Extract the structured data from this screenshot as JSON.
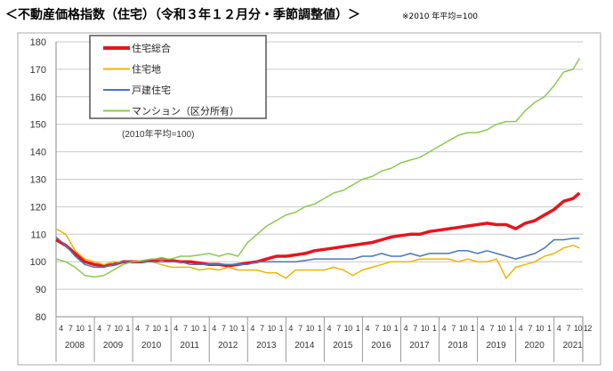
{
  "title": "＜不動産価格指数（住宅）（令和３年１２月分・季節調整値）＞",
  "note": "※2010 年平均=100",
  "chart_data": {
    "type": "line",
    "subtitle": "(2010年平均=100)",
    "ylim": [
      80,
      180
    ],
    "yticks": [
      80,
      90,
      100,
      110,
      120,
      130,
      140,
      150,
      160,
      170,
      180
    ],
    "grid": true,
    "legend_position": "top-left",
    "month_tick_labels": [
      "4",
      "7",
      "10",
      "1"
    ],
    "final_month_label": "12",
    "year_labels": [
      "2008",
      "2009",
      "2010",
      "2011",
      "2012",
      "2013",
      "2014",
      "2015",
      "2016",
      "2017",
      "2018",
      "2019",
      "2020",
      "2021"
    ],
    "x": [
      "2008-04",
      "2008-07",
      "2008-10",
      "2009-01",
      "2009-04",
      "2009-07",
      "2009-10",
      "2010-01",
      "2010-04",
      "2010-07",
      "2010-10",
      "2011-01",
      "2011-04",
      "2011-07",
      "2011-10",
      "2012-01",
      "2012-04",
      "2012-07",
      "2012-10",
      "2013-01",
      "2013-04",
      "2013-07",
      "2013-10",
      "2014-01",
      "2014-04",
      "2014-07",
      "2014-10",
      "2015-01",
      "2015-04",
      "2015-07",
      "2015-10",
      "2016-01",
      "2016-04",
      "2016-07",
      "2016-10",
      "2017-01",
      "2017-04",
      "2017-07",
      "2017-10",
      "2018-01",
      "2018-04",
      "2018-07",
      "2018-10",
      "2019-01",
      "2019-04",
      "2019-07",
      "2019-10",
      "2020-01",
      "2020-04",
      "2020-07",
      "2020-10",
      "2021-01",
      "2021-04",
      "2021-07",
      "2021-10",
      "2021-12"
    ],
    "series": [
      {
        "name": "住宅総合",
        "color": "#e8141c",
        "width": 3.5,
        "values": [
          108,
          106,
          103,
          100,
          99,
          98.5,
          99,
          100,
          100,
          100,
          100.5,
          101,
          100.5,
          100,
          100,
          99.5,
          99,
          99,
          98.5,
          99,
          99.5,
          100,
          101,
          102,
          102,
          102.5,
          103,
          104,
          104.5,
          105,
          105.5,
          106,
          106.5,
          107,
          108,
          109,
          109.5,
          110,
          110,
          111,
          111.5,
          112,
          112.5,
          113,
          113.5,
          114,
          113.5,
          113.5,
          112,
          114,
          115,
          117,
          119,
          122,
          123,
          125
        ]
      },
      {
        "name": "住宅地",
        "color": "#f0b400",
        "width": 1.5,
        "values": [
          112,
          110,
          104,
          101,
          100,
          99,
          100,
          100,
          100,
          100,
          100,
          99,
          98,
          98,
          98,
          97,
          97.5,
          97,
          98,
          97,
          97,
          97,
          96,
          96,
          94,
          97,
          97,
          97,
          97,
          98,
          97,
          95,
          97,
          98,
          99,
          100,
          100,
          100,
          101,
          101,
          101,
          101,
          100,
          101,
          100,
          100,
          101,
          94,
          98,
          99,
          100,
          102,
          103,
          105,
          106,
          105
        ]
      },
      {
        "name": "戸建住宅",
        "color": "#4a78b8",
        "width": 1.5,
        "values": [
          109,
          106,
          102,
          99,
          98,
          98,
          99,
          100,
          100,
          100,
          100,
          100,
          100,
          100,
          99,
          99,
          99,
          99,
          99,
          99,
          99,
          100,
          100,
          100,
          100,
          100,
          100.5,
          101,
          101,
          101,
          101,
          101,
          102,
          102,
          103,
          102,
          102,
          103,
          102,
          103,
          103,
          103,
          104,
          104,
          103,
          104,
          103,
          102,
          101,
          102,
          103,
          105,
          108,
          108,
          108.5,
          108.5
        ]
      },
      {
        "name": "マンション（区分所有）",
        "color": "#8cc850",
        "width": 1.5,
        "values": [
          101,
          100,
          98,
          95,
          94.5,
          95,
          97,
          99,
          100,
          100.5,
          101,
          101,
          101,
          102,
          102,
          102.5,
          103,
          102,
          103,
          102,
          107,
          110,
          113,
          115,
          117,
          118,
          120,
          121,
          123,
          125,
          126,
          128,
          130,
          131,
          133,
          134,
          136,
          137,
          138,
          140,
          142,
          144,
          146,
          147,
          147,
          148,
          150,
          151,
          151,
          155,
          158,
          160,
          164,
          169,
          170,
          174
        ]
      }
    ]
  }
}
